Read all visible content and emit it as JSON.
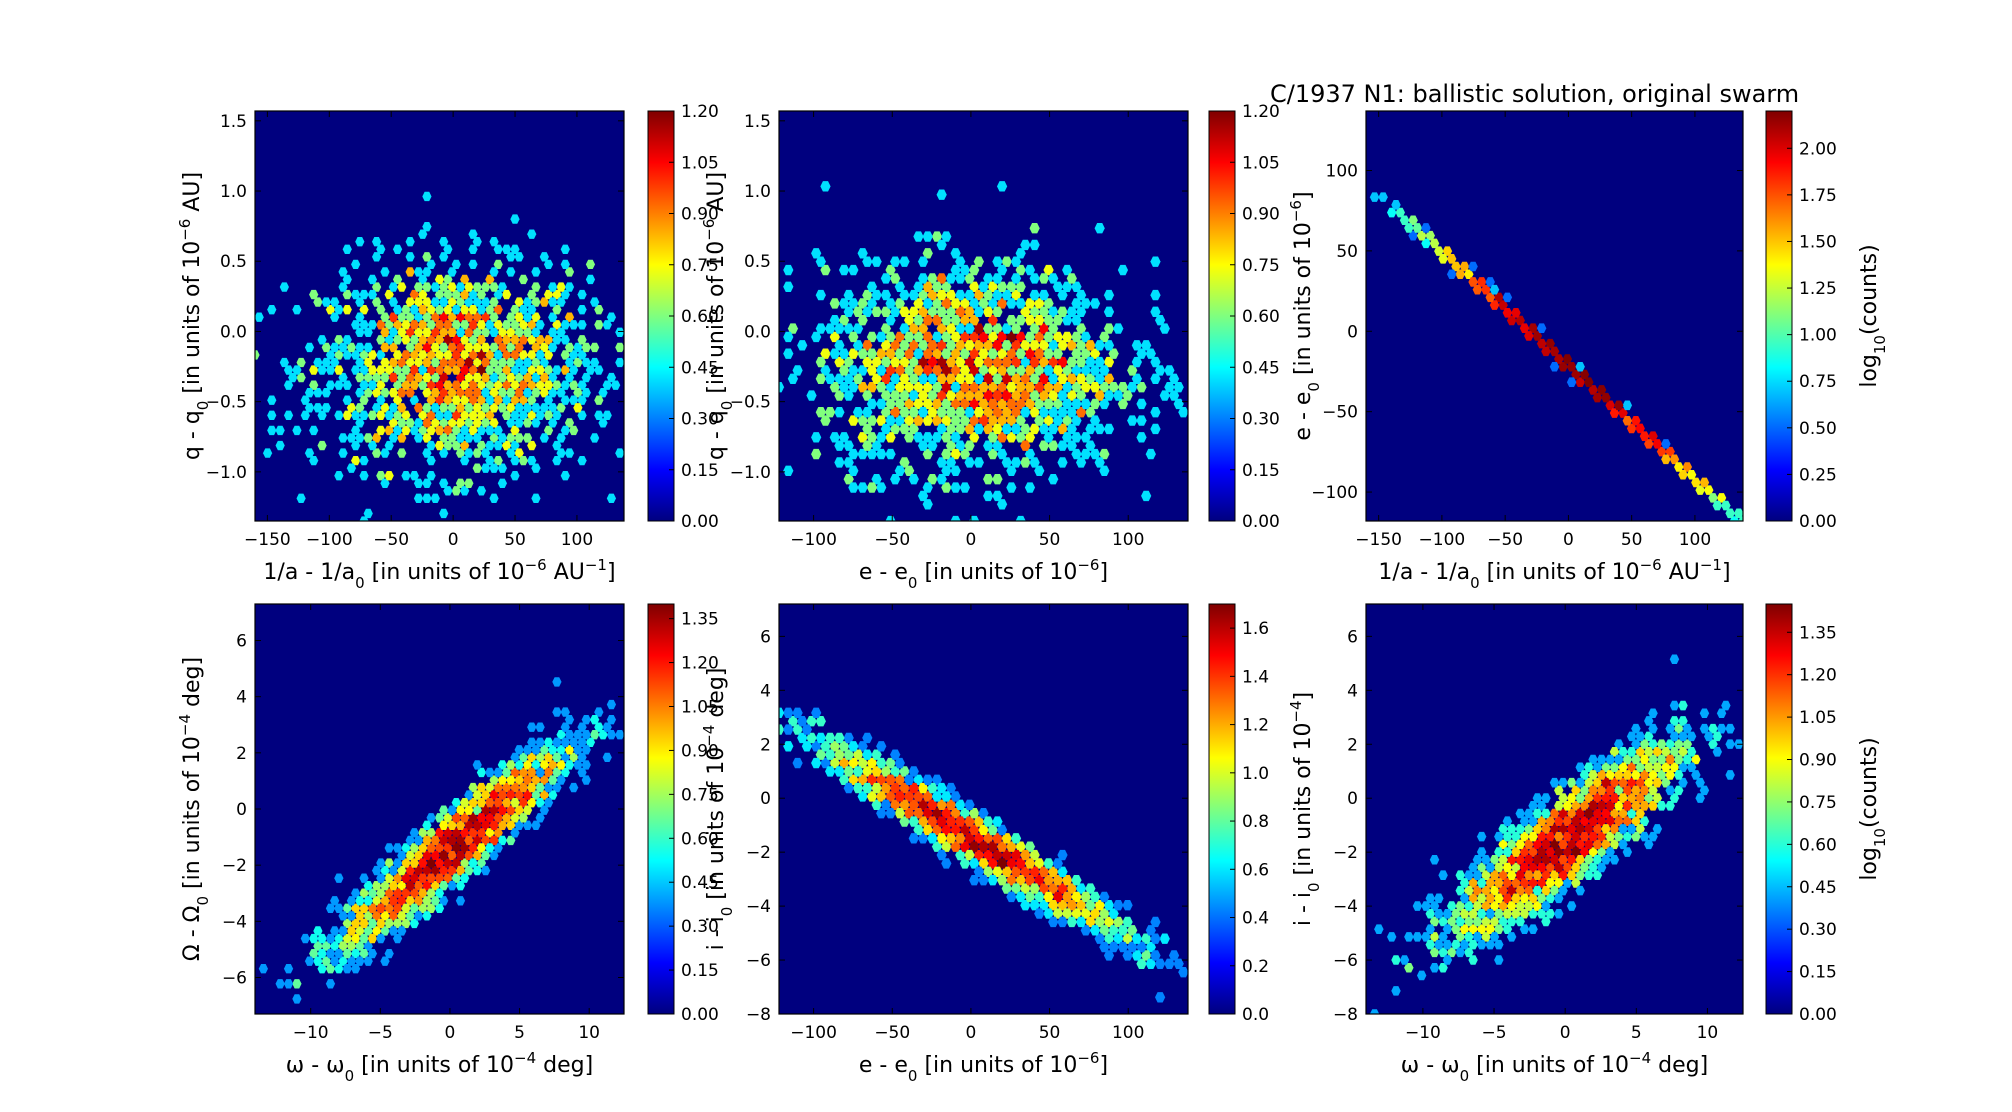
{
  "figure_title": "C/1937 N1:  ballistic solution, original swarm",
  "colormap": [
    "#00007f",
    "#0000ff",
    "#007fff",
    "#00ffff",
    "#7fff7f",
    "#ffff00",
    "#ff7f00",
    "#ff0000",
    "#7f0000"
  ],
  "panels_text": {
    "p1": {
      "x_pre": "1/a - 1/a",
      "x_sub": "0",
      "x_mid": " [in units of 10",
      "x_sup": "−6",
      "x_post": " AU",
      "x_sup2": "−1",
      "x_end": "]",
      "y_pre": "q - q",
      "y_sub": "0",
      "y_mid": " [in units of 10",
      "y_sup": "−6",
      "y_post": " AU]"
    },
    "p2": {
      "x_pre": "e - e",
      "x_sub": "0",
      "x_mid": " [in units of 10",
      "x_sup": "−6",
      "x_end": "]",
      "y_pre": "q - q",
      "y_sub": "0",
      "y_mid": " [in units of 10",
      "y_sup": "−6",
      "y_post": " AU]"
    },
    "p3": {
      "x_pre": "1/a - 1/a",
      "x_sub": "0",
      "x_mid": " [in units of 10",
      "x_sup": "−6",
      "x_post": " AU",
      "x_sup2": "−1",
      "x_end": "]",
      "y_pre": "e - e",
      "y_sub": "0",
      "y_mid": " [in units of 10",
      "y_sup": "−6",
      "y_end": "]",
      "cb_pre": "log",
      "cb_sub": "10",
      "cb_post": "(counts)"
    },
    "p4": {
      "x_pre": "ω - ω",
      "x_sub": "0",
      "x_mid": " [in units of 10",
      "x_sup": "−4",
      "x_post": "  deg]",
      "y_pre": "Ω - Ω",
      "y_sub": "0",
      "y_mid": " [in units of 10",
      "y_sup": "−4",
      "y_post": " deg]"
    },
    "p5": {
      "x_pre": "e - e",
      "x_sub": "0",
      "x_mid": " [in units of 10",
      "x_sup": "−6",
      "x_end": "]",
      "y_pre": "i - i",
      "y_sub": "0",
      "y_mid": " [in units of 10",
      "y_sup": "−4",
      "y_post": " deg]"
    },
    "p6": {
      "x_pre": "ω - ω",
      "x_sub": "0",
      "x_mid": " [in units of 10",
      "x_sup": "−4",
      "x_post": "  deg]",
      "y_pre": "i - i",
      "y_sub": "0",
      "y_mid": " [in units of 10",
      "y_sup": "−4",
      "y_end": "]",
      "cb_pre": "log",
      "cb_sub": "10",
      "cb_post": "(counts)"
    }
  },
  "chart_data": [
    {
      "id": "p1",
      "type": "heatmap",
      "style": "hexbin",
      "xlim": [
        -160,
        138
      ],
      "ylim": [
        -1.35,
        1.57
      ],
      "xticks": [
        -150,
        -100,
        -50,
        0,
        50,
        100
      ],
      "xtick_labels": [
        "−150",
        "−100",
        "−50",
        "0",
        "50",
        "100"
      ],
      "yticks": [
        -1.0,
        -0.5,
        0.0,
        0.5,
        1.0,
        1.5
      ],
      "ytick_labels": [
        "−1.0",
        "−0.5",
        "0.0",
        "0.5",
        "1.0",
        "1.5"
      ],
      "colorbar": {
        "range": [
          0,
          1.2
        ],
        "ticks": [
          "0.00",
          "0.15",
          "0.30",
          "0.45",
          "0.60",
          "0.75",
          "0.90",
          "1.05",
          "1.20"
        ]
      },
      "distribution": {
        "cx": 0,
        "cy": 0,
        "sx": 55,
        "sy": 0.45,
        "rho": 0,
        "count": 1600
      }
    },
    {
      "id": "p2",
      "type": "heatmap",
      "style": "hexbin",
      "xlim": [
        -122,
        138
      ],
      "ylim": [
        -1.35,
        1.57
      ],
      "xticks": [
        -100,
        -50,
        0,
        50,
        100
      ],
      "xtick_labels": [
        "−100",
        "−50",
        "0",
        "50",
        "100"
      ],
      "yticks": [
        -1.0,
        -0.5,
        0.0,
        0.5,
        1.0,
        1.5
      ],
      "ytick_labels": [
        "−1.0",
        "−0.5",
        "0.0",
        "0.5",
        "1.0",
        "1.5"
      ],
      "colorbar": {
        "range": [
          0,
          1.2
        ],
        "ticks": [
          "0.00",
          "0.15",
          "0.30",
          "0.45",
          "0.60",
          "0.75",
          "0.90",
          "1.05",
          "1.20"
        ]
      },
      "distribution": {
        "cx": 0,
        "cy": 0,
        "sx": 48,
        "sy": 0.45,
        "rho": 0,
        "count": 1600
      }
    },
    {
      "id": "p3",
      "type": "heatmap",
      "style": "hexbin",
      "xlim": [
        -160,
        138
      ],
      "ylim": [
        -118,
        137
      ],
      "xticks": [
        -150,
        -100,
        -50,
        0,
        50,
        100
      ],
      "xtick_labels": [
        "−150",
        "−100",
        "−50",
        "0",
        "50",
        "100"
      ],
      "yticks": [
        -100,
        -50,
        0,
        50,
        100
      ],
      "ytick_labels": [
        "−100",
        "−50",
        "0",
        "50",
        "100"
      ],
      "colorbar": {
        "range": [
          0,
          2.2
        ],
        "ticks": [
          "0.00",
          "0.25",
          "0.50",
          "0.75",
          "1.00",
          "1.25",
          "1.50",
          "1.75",
          "2.00"
        ]
      },
      "distribution": {
        "cx": 0,
        "cy": 0,
        "sx": 55,
        "sy": 48,
        "rho": -0.9995,
        "count": 2500
      }
    },
    {
      "id": "p4",
      "type": "heatmap",
      "style": "hexbin",
      "xlim": [
        -14,
        12.5
      ],
      "ylim": [
        -7.3,
        7.3
      ],
      "xticks": [
        -10,
        -5,
        0,
        5,
        10
      ],
      "xtick_labels": [
        "−10",
        "−5",
        "0",
        "5",
        "10"
      ],
      "yticks": [
        -6,
        -4,
        -2,
        0,
        2,
        4,
        6
      ],
      "ytick_labels": [
        "−6",
        "−4",
        "−2",
        "0",
        "2",
        "4",
        "6"
      ],
      "colorbar": {
        "range": [
          0,
          1.4
        ],
        "ticks": [
          "0.00",
          "0.15",
          "0.30",
          "0.45",
          "0.60",
          "0.75",
          "0.90",
          "1.05",
          "1.20",
          "1.35"
        ]
      },
      "distribution": {
        "cx": 0,
        "cy": 0,
        "sx": 4.0,
        "sy": 2.2,
        "rho": 0.93,
        "count": 2200
      }
    },
    {
      "id": "p5",
      "type": "heatmap",
      "style": "hexbin",
      "xlim": [
        -122,
        138
      ],
      "ylim": [
        -8,
        7.2
      ],
      "xticks": [
        -100,
        -50,
        0,
        50,
        100
      ],
      "xtick_labels": [
        "−100",
        "−50",
        "0",
        "50",
        "100"
      ],
      "yticks": [
        -8,
        -6,
        -4,
        -2,
        0,
        2,
        4,
        6
      ],
      "ytick_labels": [
        "−8",
        "−6",
        "−4",
        "−2",
        "0",
        "2",
        "4",
        "6"
      ],
      "colorbar": {
        "range": [
          0,
          1.7
        ],
        "ticks": [
          "0.0",
          "0.2",
          "0.4",
          "0.6",
          "0.8",
          "1.0",
          "1.2",
          "1.4",
          "1.6"
        ]
      },
      "distribution": {
        "cx": 0,
        "cy": 0,
        "sx": 48,
        "sy": 2.2,
        "rho": -0.97,
        "count": 2200
      }
    },
    {
      "id": "p6",
      "type": "heatmap",
      "style": "hexbin",
      "xlim": [
        -14,
        12.5
      ],
      "ylim": [
        -8,
        7.2
      ],
      "xticks": [
        -10,
        -5,
        0,
        5,
        10
      ],
      "xtick_labels": [
        "−10",
        "−5",
        "0",
        "5",
        "10"
      ],
      "yticks": [
        -8,
        -6,
        -4,
        -2,
        0,
        2,
        4,
        6
      ],
      "ytick_labels": [
        "−8",
        "−6",
        "−4",
        "−2",
        "0",
        "2",
        "4",
        "6"
      ],
      "colorbar": {
        "range": [
          0,
          1.45
        ],
        "ticks": [
          "0.00",
          "0.15",
          "0.30",
          "0.45",
          "0.60",
          "0.75",
          "0.90",
          "1.05",
          "1.20",
          "1.35"
        ]
      },
      "distribution": {
        "cx": 0,
        "cy": 0,
        "sx": 4.0,
        "sy": 2.2,
        "rho": 0.87,
        "count": 2200
      }
    }
  ]
}
